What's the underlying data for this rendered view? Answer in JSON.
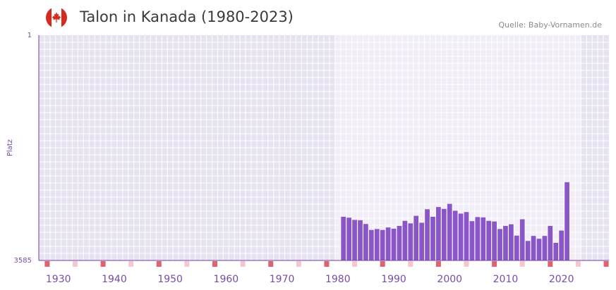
{
  "header": {
    "title": "Talon in Kanada (1980-2023)",
    "source": "Quelle: Baby-Vornamen.de",
    "flag_icon": "canada-flag-icon"
  },
  "colors": {
    "bar": "#8a55c8",
    "axis": "#6b3fa0",
    "tick_text": "#7a4ba8",
    "plot_bg_outside": "#e6e2ef",
    "plot_bg_inside": "#f1eef8",
    "grid": "#ffffff",
    "marker": "#e06270",
    "marker_light": "#f5c8cf"
  },
  "chart_data": {
    "type": "bar",
    "title": "Talon in Kanada (1980-2023)",
    "xlabel": "",
    "ylabel": "Platz",
    "y_reversed": true,
    "ylim": [
      1,
      3585
    ],
    "y_ticks": [
      "1",
      "3585"
    ],
    "xlim": [
      1926.5,
      2028.5
    ],
    "x_ticks": [
      1930,
      1940,
      1950,
      1960,
      1970,
      1980,
      1990,
      2000,
      2010,
      2020
    ],
    "highlight_range": [
      1980,
      2023
    ],
    "years": [
      1981,
      1982,
      1983,
      1984,
      1985,
      1986,
      1987,
      1988,
      1989,
      1990,
      1991,
      1992,
      1993,
      1994,
      1995,
      1996,
      1997,
      1998,
      1999,
      2000,
      2001,
      2002,
      2003,
      2004,
      2005,
      2006,
      2007,
      2008,
      2009,
      2010,
      2011,
      2012,
      2013,
      2014,
      2015,
      2016,
      2017,
      2018,
      2019,
      2020,
      2021,
      2022
    ],
    "values": [
      2890,
      2905,
      2940,
      2945,
      3005,
      3100,
      3085,
      3100,
      3060,
      3080,
      3035,
      2955,
      2995,
      2875,
      2985,
      2770,
      2890,
      2735,
      2765,
      2685,
      2795,
      2840,
      2815,
      2960,
      2895,
      2900,
      2955,
      2965,
      3085,
      3035,
      3010,
      3190,
      2930,
      3275,
      3195,
      3240,
      3195,
      3035,
      3305,
      3110,
      2340,
      3585
    ]
  }
}
